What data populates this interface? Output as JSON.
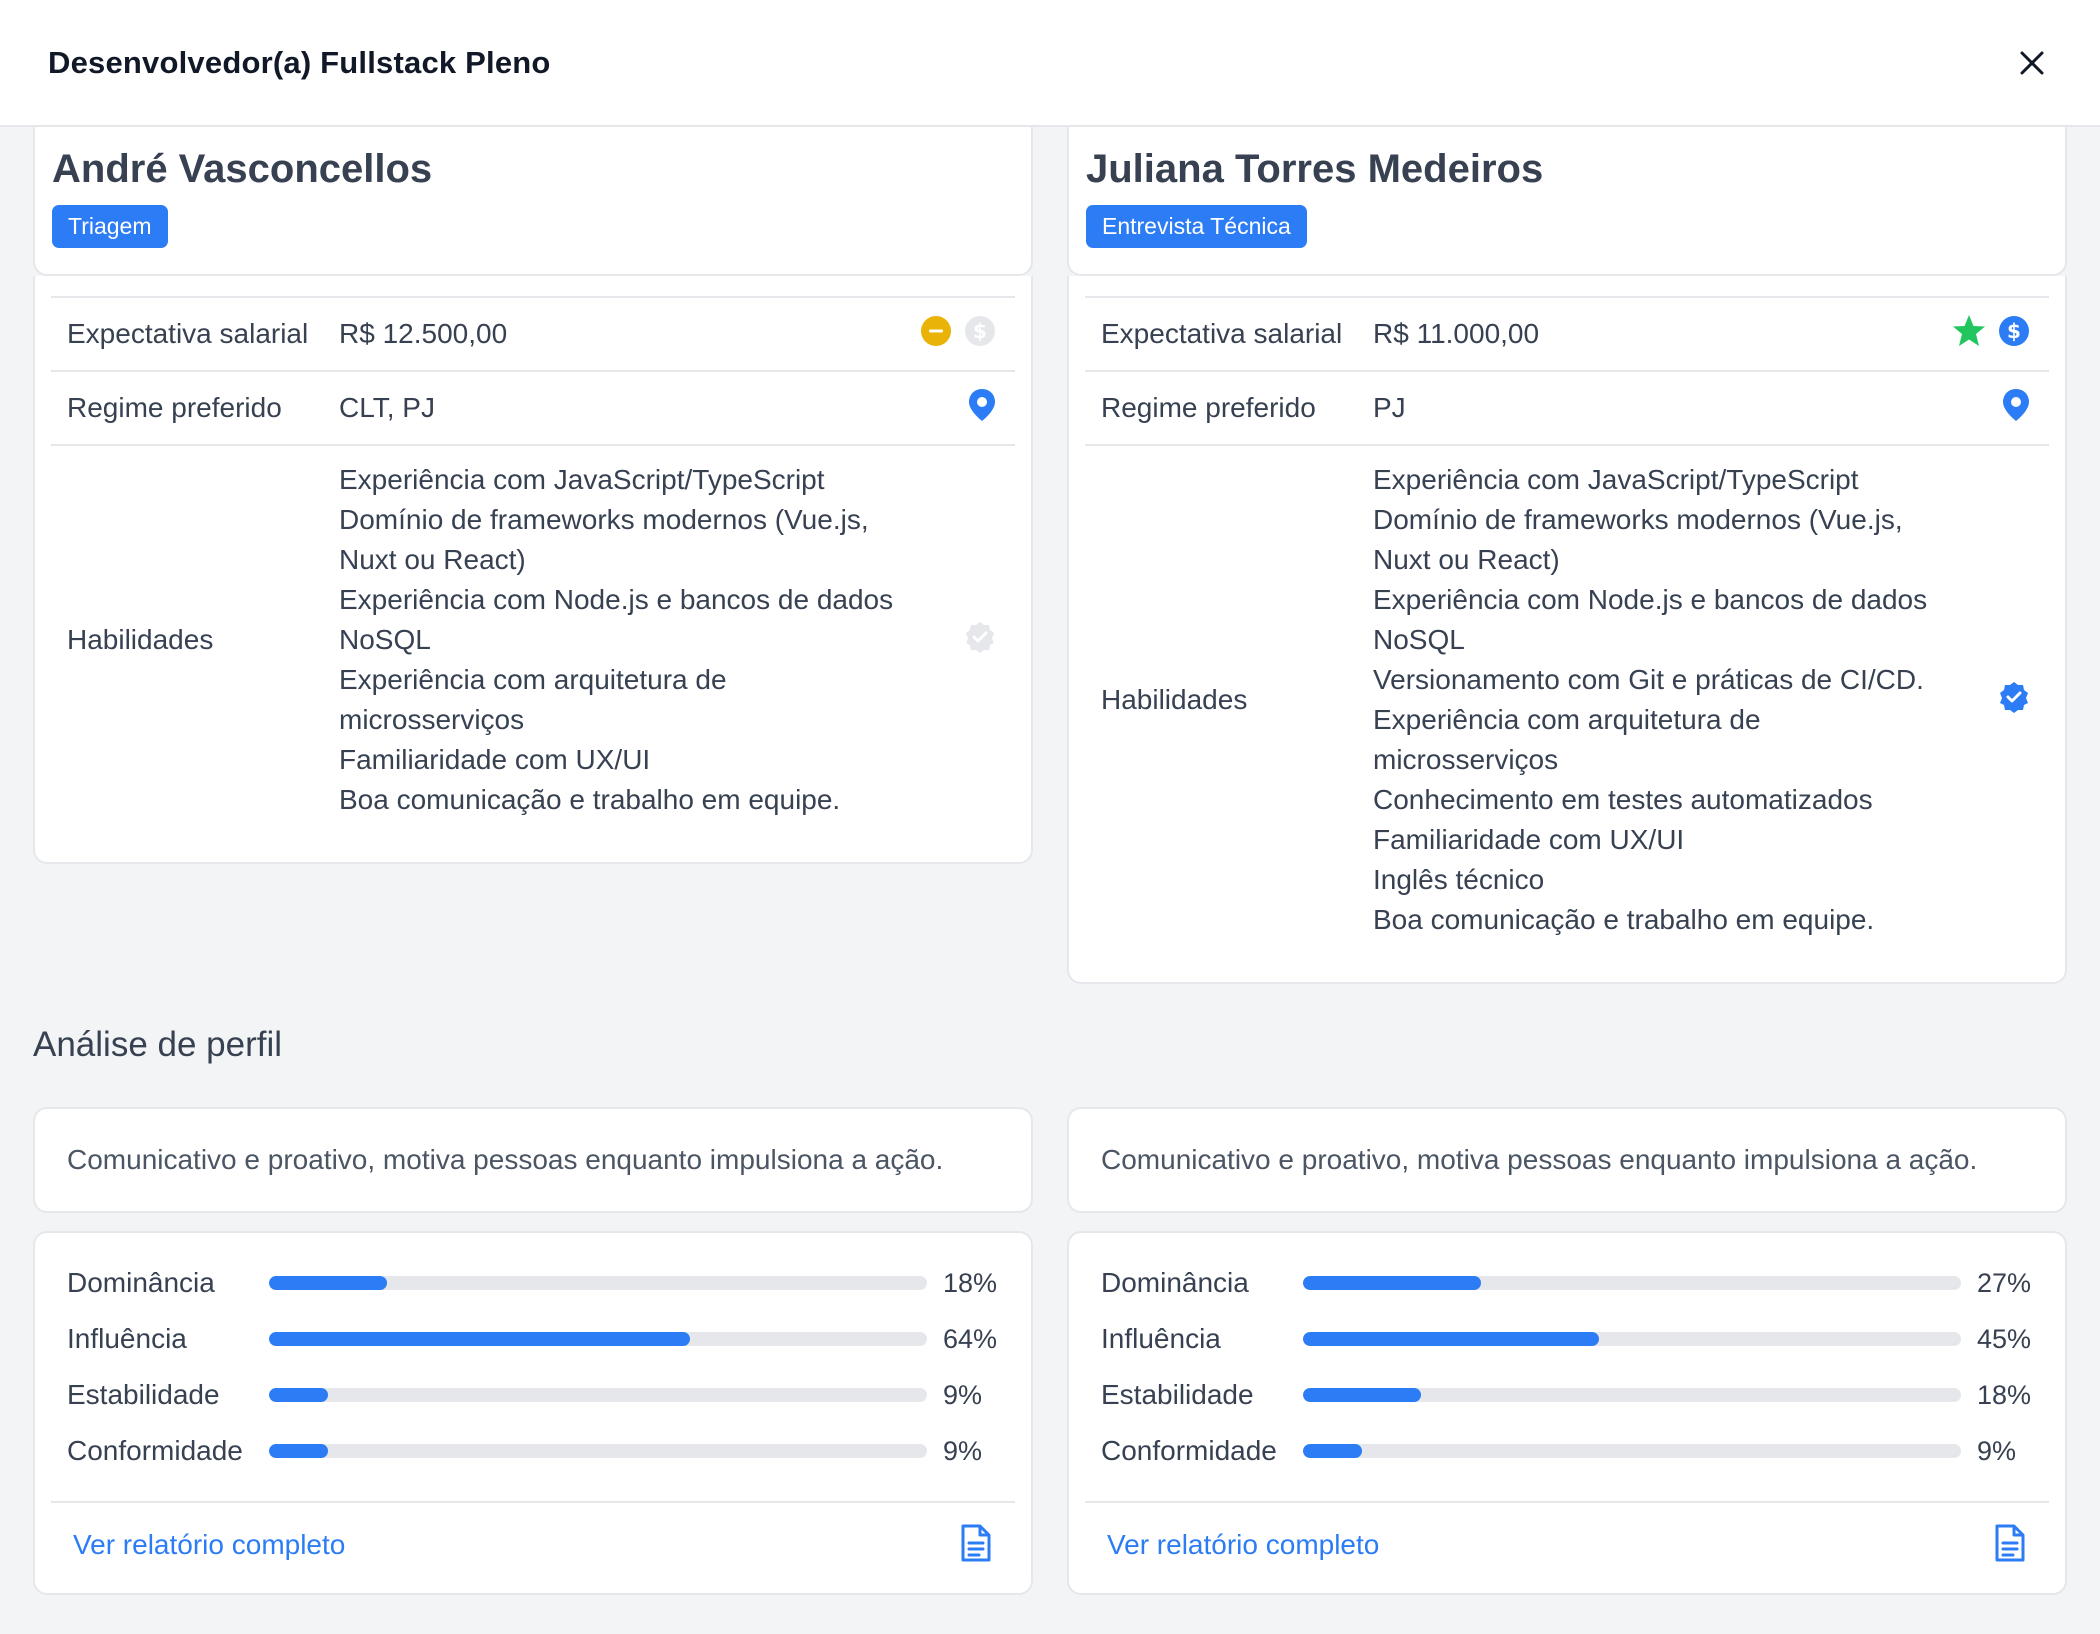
{
  "header": {
    "title": "Desenvolvedor(a) Fullstack Pleno",
    "close_icon": "close-icon"
  },
  "labels": {
    "salary": "Expectativa salarial",
    "regime": "Regime preferido",
    "skills": "Habilidades"
  },
  "candidates": [
    {
      "name": "André Vasconcellos",
      "stage": "Triagem",
      "salary": "R$ 12.500,00",
      "regime": "CLT, PJ",
      "salary_icons": [
        "minus-circle-icon (amber #eab308)",
        "dollar-circle-icon (gray)"
      ],
      "regime_icon": "location-pin-icon (blue)",
      "skills_icon": "verified-badge-icon (gray)",
      "skills": [
        "Experiência com JavaScript/TypeScript",
        "Domínio de frameworks modernos (Vue.js,",
        "Nuxt ou React)",
        "Experiência com Node.js e bancos de dados",
        "NoSQL",
        "Experiência com arquitetura de",
        "microsserviços",
        "Familiaridade com UX/UI",
        "Boa comunicação e trabalho em equipe."
      ]
    },
    {
      "name": "Juliana Torres Medeiros",
      "stage": "Entrevista Técnica",
      "salary": "R$ 11.000,00",
      "regime": "PJ",
      "salary_icons": [
        "star-icon (green #22c55e)",
        "dollar-circle-icon (blue)"
      ],
      "regime_icon": "location-pin-icon (blue)",
      "skills_icon": "verified-badge-icon (blue)",
      "skills": [
        "Experiência com JavaScript/TypeScript",
        "Domínio de frameworks modernos (Vue.js,",
        "Nuxt ou React)",
        "Experiência com Node.js e bancos de dados",
        "NoSQL",
        "Versionamento com Git e práticas de CI/CD.",
        "Experiência com arquitetura de",
        "microsserviços",
        "Conhecimento em testes automatizados",
        "Familiaridade com UX/UI",
        "Inglês técnico",
        "Boa comunicação e trabalho em equipe."
      ]
    }
  ],
  "analysis": {
    "title": "Análise de perfil",
    "report_link": "Ver relatório completo",
    "report_icon": "document-icon",
    "profiles": [
      {
        "summary": "Comunicativo e proativo, motiva pessoas enquanto impulsiona a ação.",
        "metrics": [
          {
            "label": "Dominância",
            "value": 18,
            "pct": "18%"
          },
          {
            "label": "Influência",
            "value": 64,
            "pct": "64%"
          },
          {
            "label": "Estabilidade",
            "value": 9,
            "pct": "9%"
          },
          {
            "label": "Conformidade",
            "value": 9,
            "pct": "9%"
          }
        ]
      },
      {
        "summary": "Comunicativo e proativo, motiva pessoas enquanto impulsiona a ação.",
        "metrics": [
          {
            "label": "Dominância",
            "value": 27,
            "pct": "27%"
          },
          {
            "label": "Influência",
            "value": 45,
            "pct": "45%"
          },
          {
            "label": "Estabilidade",
            "value": 18,
            "pct": "18%"
          },
          {
            "label": "Conformidade",
            "value": 9,
            "pct": "9%"
          }
        ]
      }
    ]
  },
  "colors": {
    "accent": "#2b7cf5",
    "muted_icon": "#d1d5db",
    "warning": "#eab308",
    "success": "#22c55e"
  }
}
